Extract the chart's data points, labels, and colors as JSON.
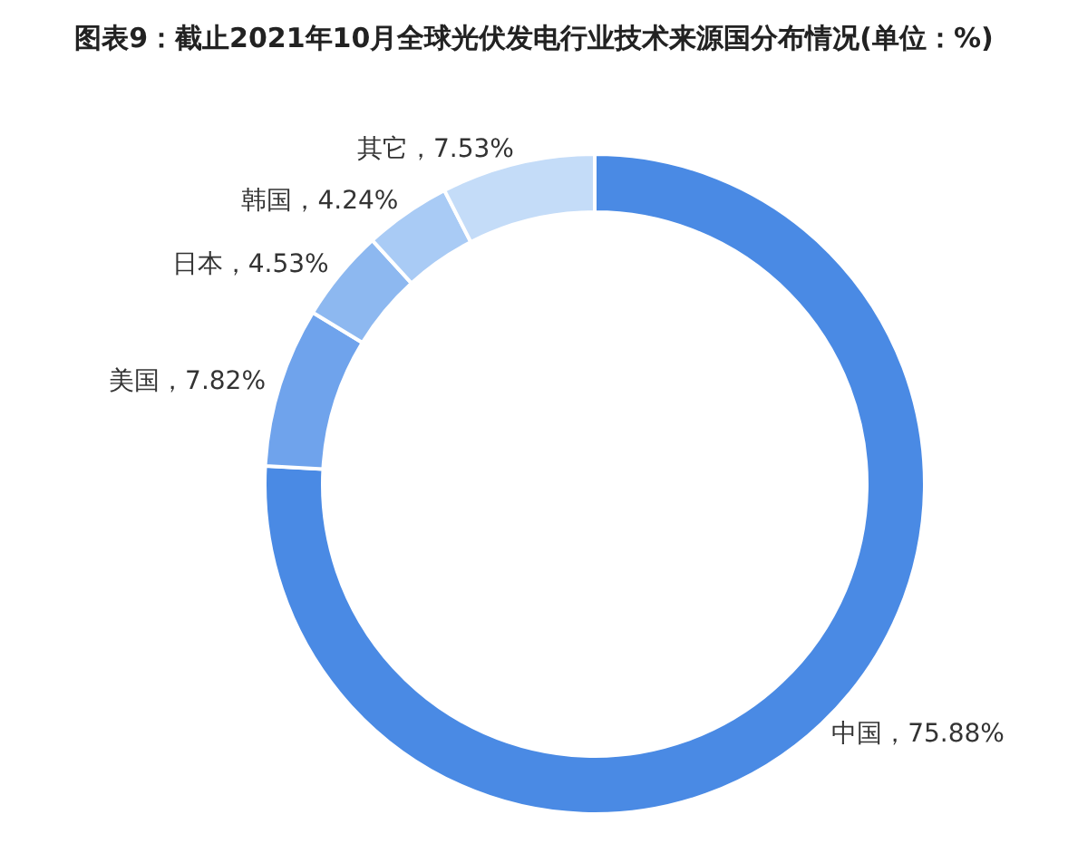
{
  "chart_data": {
    "type": "donut",
    "title": "图表9：截止2021年10月全球光伏发电行业技术来源国分布情况(单位：%)",
    "categories": [
      "中国",
      "美国",
      "日本",
      "韩国",
      "其它"
    ],
    "values": [
      75.88,
      7.82,
      4.53,
      4.24,
      7.53
    ],
    "colors": [
      "#4a8ae4",
      "#6fa3ec",
      "#8db8f0",
      "#a9cbf5",
      "#c4dcf8"
    ],
    "value_labels": [
      "，75.88%",
      "，7.82%",
      "，4.53%",
      "，4.24%",
      "，7.53%"
    ]
  }
}
